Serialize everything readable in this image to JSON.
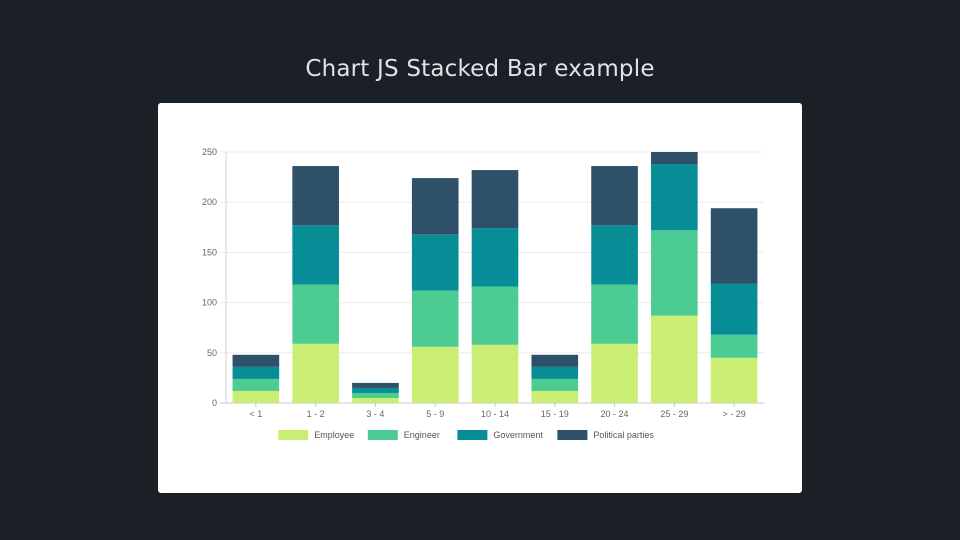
{
  "page": {
    "title": "Chart JS Stacked Bar example"
  },
  "chart_data": {
    "type": "bar",
    "stacked": true,
    "categories": [
      "< 1",
      "1 - 2",
      "3 - 4",
      "5 - 9",
      "10 - 14",
      "15 - 19",
      "20 - 24",
      "25 - 29",
      "> - 29"
    ],
    "series": [
      {
        "name": "Employee",
        "color": "#c9ee73",
        "values": [
          12,
          59,
          5,
          56,
          58,
          12,
          59,
          87,
          45
        ]
      },
      {
        "name": "Engineer",
        "color": "#4ccb93",
        "values": [
          12,
          59,
          5,
          56,
          58,
          12,
          59,
          85,
          23
        ]
      },
      {
        "name": "Government",
        "color": "#078d95",
        "values": [
          12,
          59,
          5,
          56,
          58,
          12,
          59,
          66,
          51
        ]
      },
      {
        "name": "Political parties",
        "color": "#2e5068",
        "values": [
          12,
          59,
          5,
          56,
          58,
          12,
          59,
          12,
          75
        ]
      }
    ],
    "yticks": [
      "0",
      "50",
      "100",
      "150",
      "200",
      "250"
    ],
    "ylim": [
      0,
      250
    ],
    "xlabel": "",
    "ylabel": "",
    "grid": true,
    "legend": "bottom"
  }
}
